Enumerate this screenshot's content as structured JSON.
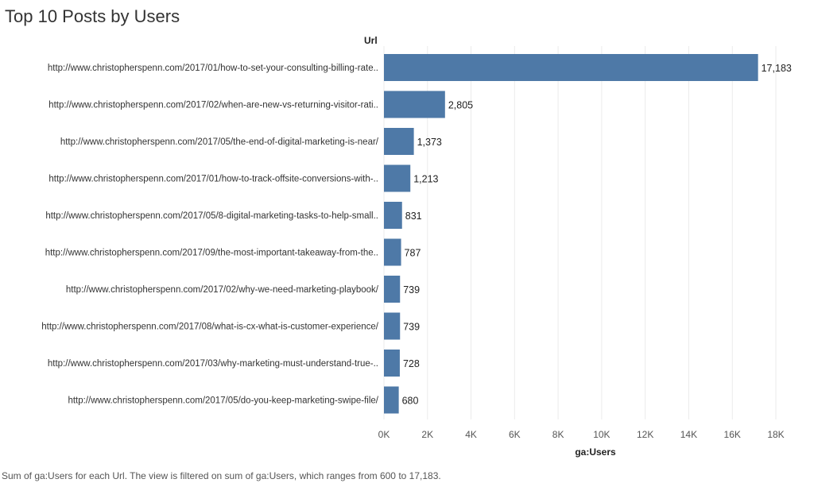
{
  "title": "Top 10 Posts by Users",
  "row_header": "Url",
  "footnote": "Sum of ga:Users for each Url. The view is filtered on sum of ga:Users, which ranges from 600 to 17,183.",
  "colors": {
    "bar": "#4e79a7",
    "grid": "#ebebeb",
    "text": "#333333"
  },
  "chart_data": {
    "type": "bar",
    "orientation": "horizontal",
    "title": "Top 10 Posts by Users",
    "xlabel": "ga:Users",
    "ylabel": "Url",
    "xlim": [
      0,
      18000
    ],
    "xticks": [
      0,
      2000,
      4000,
      6000,
      8000,
      10000,
      12000,
      14000,
      16000,
      18000
    ],
    "xtick_labels": [
      "0K",
      "2K",
      "4K",
      "6K",
      "8K",
      "10K",
      "12K",
      "14K",
      "16K",
      "18K"
    ],
    "grid": "vertical",
    "categories": [
      "http://www.christopherspenn.com/2017/01/how-to-set-your-consulting-billing-rate..",
      "http://www.christopherspenn.com/2017/02/when-are-new-vs-returning-visitor-rati..",
      "http://www.christopherspenn.com/2017/05/the-end-of-digital-marketing-is-near/",
      "http://www.christopherspenn.com/2017/01/how-to-track-offsite-conversions-with-..",
      "http://www.christopherspenn.com/2017/05/8-digital-marketing-tasks-to-help-small..",
      "http://www.christopherspenn.com/2017/09/the-most-important-takeaway-from-the..",
      "http://www.christopherspenn.com/2017/02/why-we-need-marketing-playbook/",
      "http://www.christopherspenn.com/2017/08/what-is-cx-what-is-customer-experience/",
      "http://www.christopherspenn.com/2017/03/why-marketing-must-understand-true-..",
      "http://www.christopherspenn.com/2017/05/do-you-keep-marketing-swipe-file/"
    ],
    "values": [
      17183,
      2805,
      1373,
      1213,
      831,
      787,
      739,
      739,
      728,
      680
    ],
    "value_labels": [
      "17,183",
      "2,805",
      "1,373",
      "1,213",
      "831",
      "787",
      "739",
      "739",
      "728",
      "680"
    ]
  }
}
